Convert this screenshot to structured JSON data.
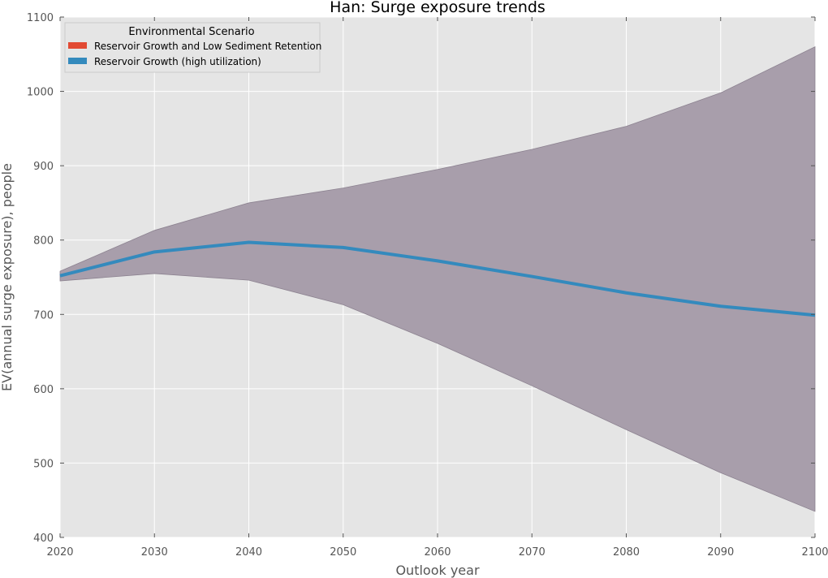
{
  "chart_data": {
    "type": "line",
    "title": "Han: Surge exposure trends",
    "xlabel": "Outlook year",
    "ylabel": "EV(annual surge exposure), people",
    "xlim": [
      2020,
      2100
    ],
    "ylim": [
      400,
      1100
    ],
    "x_ticks": [
      2020,
      2030,
      2040,
      2050,
      2060,
      2070,
      2080,
      2090,
      2100
    ],
    "y_ticks": [
      400,
      500,
      600,
      700,
      800,
      900,
      1000,
      1100
    ],
    "grid": true,
    "legend": {
      "title": "Environmental Scenario",
      "placement": "top-left",
      "entries": [
        {
          "name": "Reservoir Growth and Low Sediment Retention",
          "color": "#e24a33"
        },
        {
          "name": "Reservoir Growth (high utilization)",
          "color": "#348abd"
        }
      ]
    },
    "x": [
      2020,
      2030,
      2040,
      2050,
      2060,
      2070,
      2080,
      2090,
      2100
    ],
    "series": [
      {
        "name": "Reservoir Growth (high utilization)",
        "color": "#348abd",
        "values": [
          752,
          784,
          797,
          790,
          772,
          751,
          729,
          711,
          699
        ],
        "band_upper": [
          758,
          813,
          850,
          870,
          895,
          922,
          953,
          998,
          1060
        ],
        "band_lower": [
          745,
          755,
          746,
          713,
          661,
          604,
          545,
          487,
          435
        ],
        "band_color": "#a89eab"
      }
    ],
    "background_color": "#e5e5e5"
  }
}
